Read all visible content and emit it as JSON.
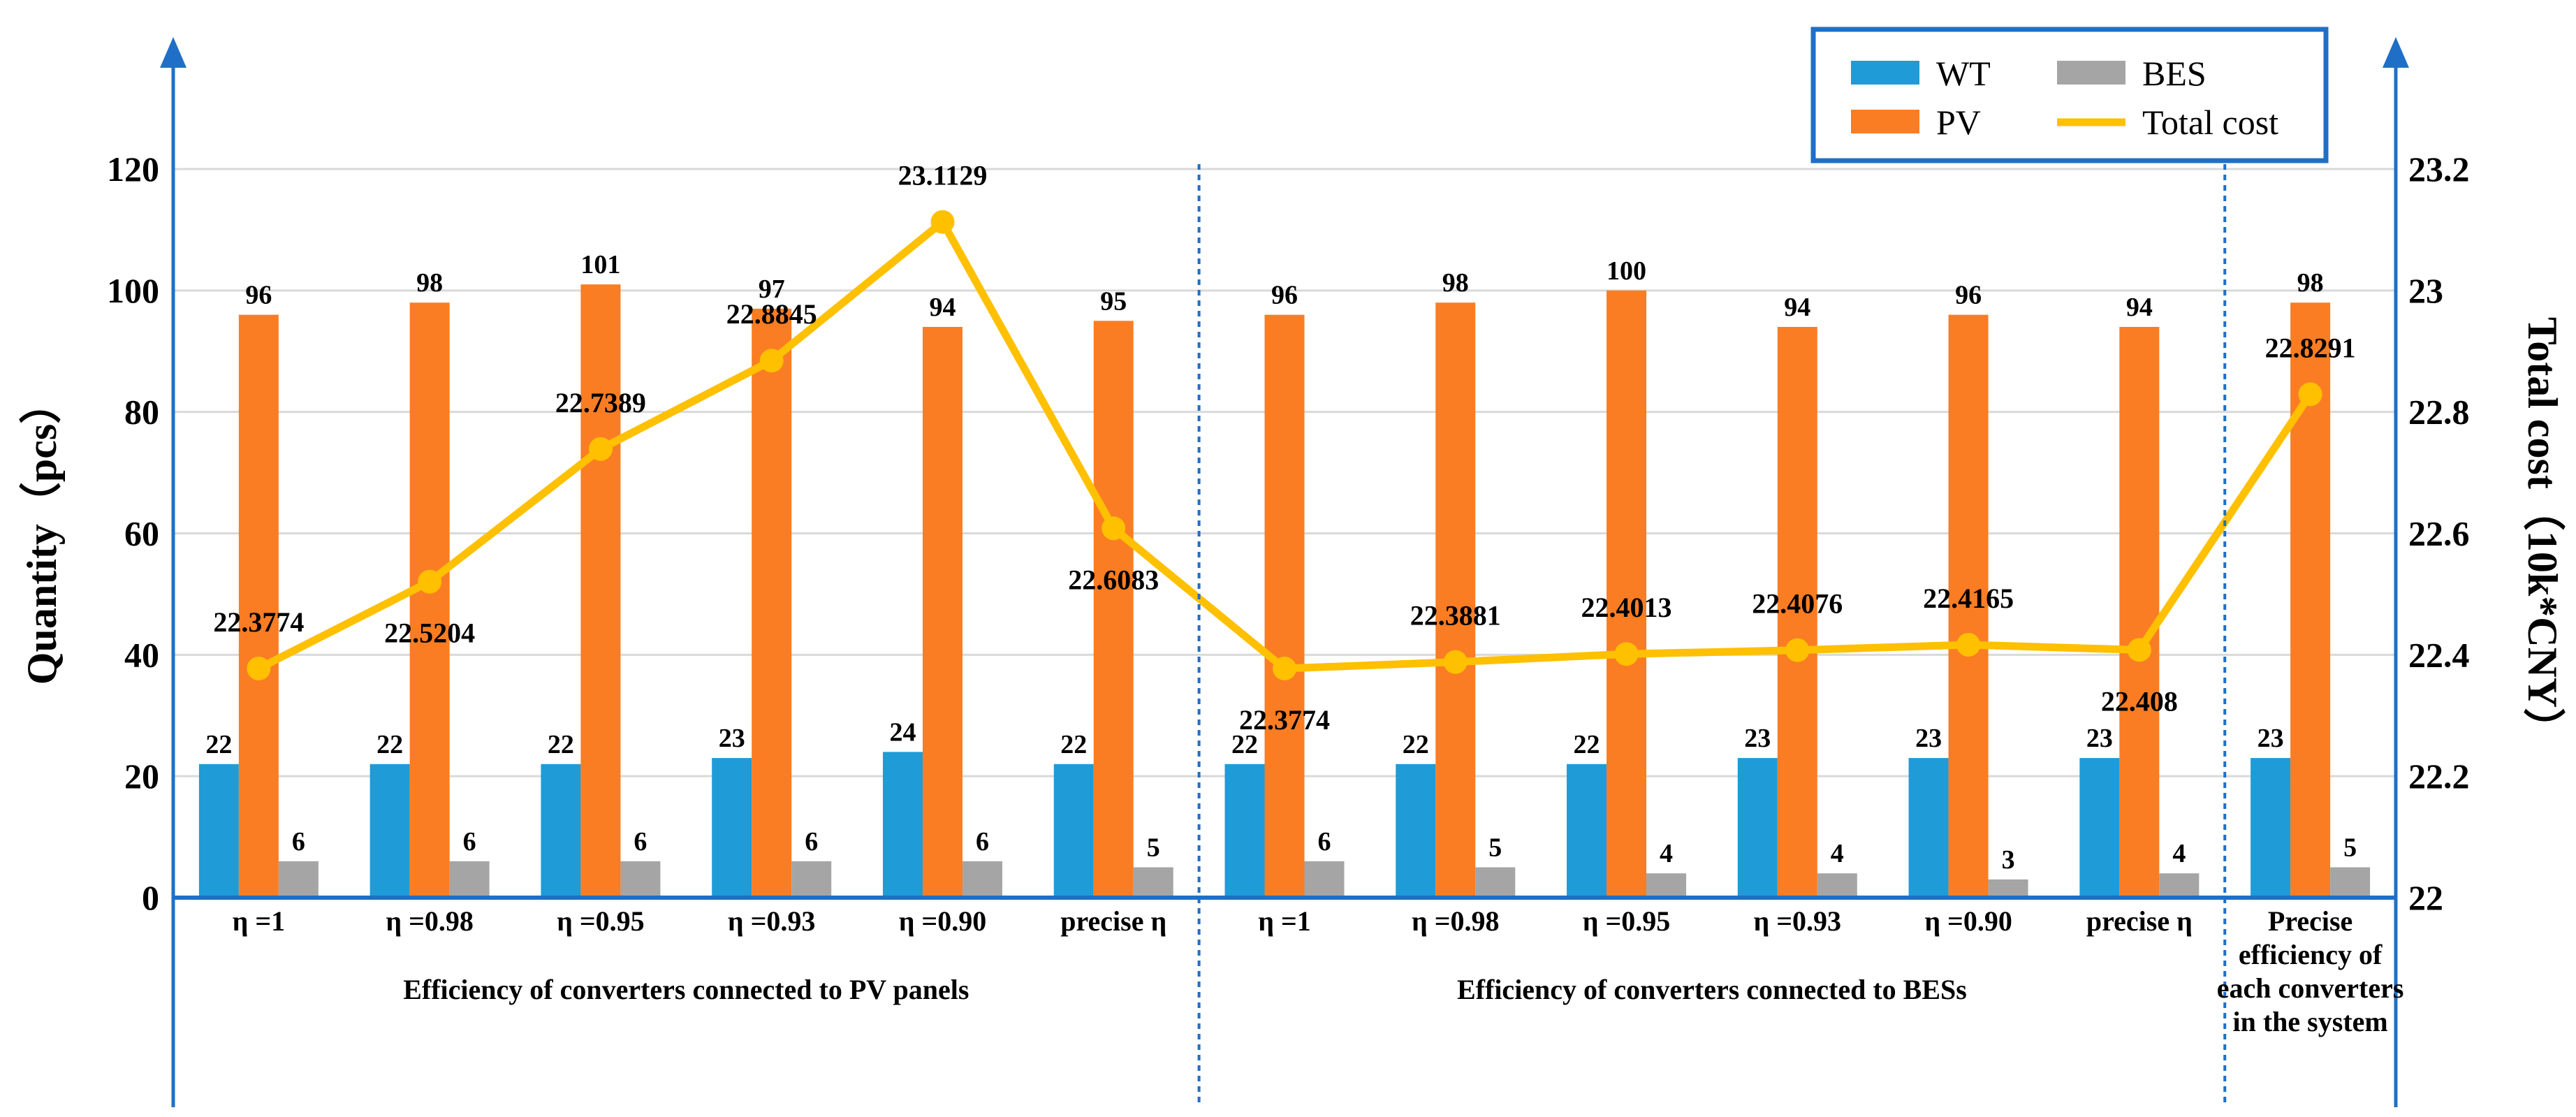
{
  "chart_data": {
    "type": "bar",
    "categories": [
      "η =1",
      "η =0.98",
      "η =0.95",
      "η =0.93",
      "η =0.90",
      "precise  η",
      "η =1",
      "η =0.98",
      "η =0.95",
      "η =0.93",
      "η =0.90",
      "precise  η",
      "Precise efficiency of each converters in the system"
    ],
    "category_lines": [
      [
        "η =1"
      ],
      [
        "η =0.98"
      ],
      [
        "η =0.95"
      ],
      [
        "η =0.93"
      ],
      [
        "η =0.90"
      ],
      [
        "precise  η"
      ],
      [
        "η =1"
      ],
      [
        "η =0.98"
      ],
      [
        "η =0.95"
      ],
      [
        "η =0.93"
      ],
      [
        "η =0.90"
      ],
      [
        "precise  η"
      ],
      [
        "Precise",
        "efficiency of",
        "each converters",
        "in the system"
      ]
    ],
    "groups": [
      {
        "label": "Efficiency of converters connected to PV panels",
        "start": 0,
        "end": 5
      },
      {
        "label": "Efficiency of converters connected to BESs",
        "start": 6,
        "end": 11
      }
    ],
    "series": [
      {
        "name": "WT",
        "color": "#1f9bd7",
        "axis": "left",
        "kind": "bar",
        "values": [
          22,
          22,
          22,
          23,
          24,
          22,
          22,
          22,
          22,
          23,
          23,
          23,
          23
        ]
      },
      {
        "name": "PV",
        "color": "#fa7d23",
        "axis": "left",
        "kind": "bar",
        "values": [
          96,
          98,
          101,
          97,
          94,
          95,
          96,
          98,
          100,
          94,
          96,
          94,
          98
        ]
      },
      {
        "name": "BES",
        "color": "#a5a5a5",
        "axis": "left",
        "kind": "bar",
        "values": [
          6,
          6,
          6,
          6,
          6,
          5,
          6,
          5,
          4,
          4,
          3,
          4,
          5
        ]
      },
      {
        "name": "Total cost",
        "color": "#ffc000",
        "axis": "right",
        "kind": "line",
        "values": [
          22.3774,
          22.5204,
          22.7389,
          22.8845,
          23.1129,
          22.6083,
          22.3774,
          22.3881,
          22.4013,
          22.4076,
          22.4165,
          22.408,
          22.8291
        ]
      }
    ],
    "cost_labels": [
      "22.3774",
      "22.5204",
      "22.7389",
      "22.8845",
      "23.1129",
      "22.6083",
      "22.3774",
      "22.3881",
      "22.4013",
      "22.4076",
      "22.4165",
      "22.408",
      "22.8291"
    ],
    "legend_order": [
      "WT",
      "BES",
      "PV",
      "Total cost"
    ],
    "legend_position": "top-right",
    "ylabel": "Quantity（pcs）",
    "y2label": "Total cost（10k*CNY）",
    "ylim": [
      0,
      120
    ],
    "y_ticks": [
      "0",
      "20",
      "40",
      "60",
      "80",
      "100",
      "120"
    ],
    "y2lim": [
      22,
      23.2
    ],
    "y2_ticks": [
      "22",
      "22.2",
      "22.4",
      "22.6",
      "22.8",
      "23",
      "23.2"
    ],
    "grid": true,
    "axis_color": "#1f6fc6",
    "grid_color": "#d9d9d9"
  }
}
